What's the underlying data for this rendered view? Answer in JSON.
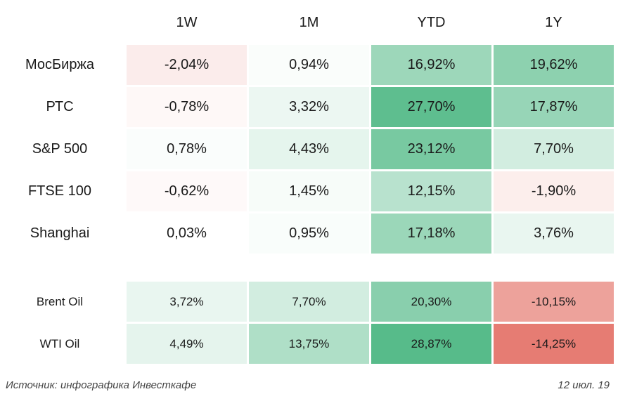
{
  "chart_data": {
    "type": "table",
    "columns": [
      "1W",
      "1M",
      "YTD",
      "1Y"
    ],
    "groups": [
      {
        "rows": [
          {
            "label": "МосБиржа",
            "values": [
              -2.04,
              0.94,
              16.92,
              19.62
            ],
            "display": [
              "-2,04%",
              "0,94%",
              "16,92%",
              "19,62%"
            ]
          },
          {
            "label": "РТС",
            "values": [
              -0.78,
              3.32,
              27.7,
              17.87
            ],
            "display": [
              "-0,78%",
              "3,32%",
              "27,70%",
              "17,87%"
            ]
          },
          {
            "label": "S&P 500",
            "values": [
              0.78,
              4.43,
              23.12,
              7.7
            ],
            "display": [
              "0,78%",
              "4,43%",
              "23,12%",
              "7,70%"
            ]
          },
          {
            "label": "FTSE 100",
            "values": [
              -0.62,
              1.45,
              12.15,
              -1.9
            ],
            "display": [
              "-0,62%",
              "1,45%",
              "12,15%",
              "-1,90%"
            ]
          },
          {
            "label": "Shanghai",
            "values": [
              0.03,
              0.95,
              17.18,
              3.76
            ],
            "display": [
              "0,03%",
              "0,95%",
              "17,18%",
              "3,76%"
            ]
          }
        ]
      },
      {
        "rows": [
          {
            "label": "Brent Oil",
            "values": [
              3.72,
              7.7,
              20.3,
              -10.15
            ],
            "display": [
              "3,72%",
              "7,70%",
              "20,30%",
              "-10,15%"
            ]
          },
          {
            "label": "WTI Oil",
            "values": [
              4.49,
              13.75,
              28.87,
              -14.25
            ],
            "display": [
              "4,49%",
              "13,75%",
              "28,87%",
              "-14,25%"
            ]
          }
        ]
      }
    ],
    "colors": {
      "positive": "#57bb8a",
      "negative": "#e67c73",
      "neutral": "#ffffff"
    }
  },
  "footer": {
    "source": "Источник: инфографика Инвесткафе",
    "date": "12 июл. 19"
  }
}
